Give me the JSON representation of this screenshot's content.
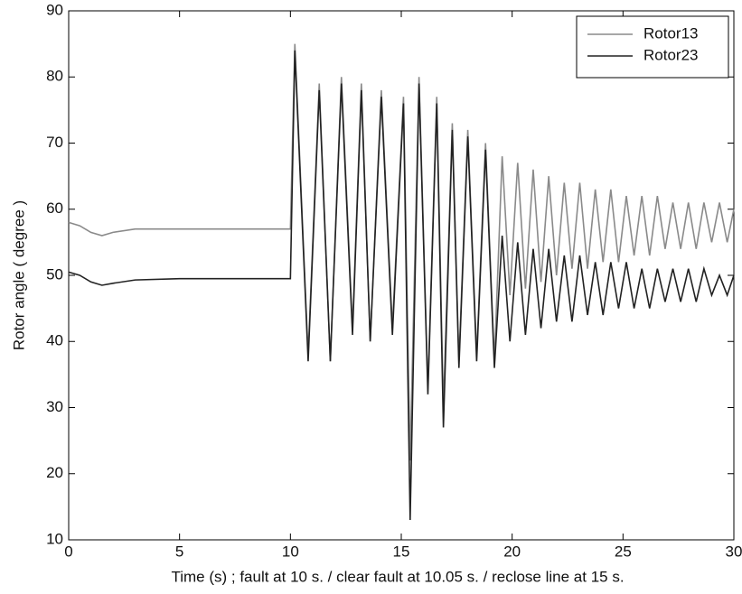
{
  "chart_data": {
    "type": "line",
    "xlabel": "Time (s) ; fault at 10 s. / clear fault at 10.05 s. / reclose line at 15 s.",
    "ylabel": "Rotor angle ( degree )",
    "x": [
      0,
      0.5,
      1,
      1.5,
      2,
      3,
      5,
      8,
      10,
      10.2,
      10.8,
      11.3,
      11.8,
      12.3,
      12.8,
      13.2,
      13.6,
      14.1,
      14.6,
      15.1,
      15.4,
      15.8,
      16.2,
      16.6,
      16.9,
      17.3,
      17.6,
      18.0,
      18.4,
      18.8,
      19.2,
      19.55,
      19.9,
      20.25,
      20.6,
      20.95,
      21.3,
      21.65,
      22.0,
      22.35,
      22.7,
      23.05,
      23.4,
      23.75,
      24.1,
      24.45,
      24.8,
      25.15,
      25.5,
      25.85,
      26.2,
      26.55,
      26.9,
      27.25,
      27.6,
      27.95,
      28.3,
      28.65,
      29.0,
      29.35,
      29.7,
      30
    ],
    "series": [
      {
        "name": "Rotor13",
        "color": "#8a8a8a",
        "values": [
          58,
          57.5,
          56.5,
          56,
          56.5,
          57,
          57,
          57,
          57,
          85,
          38,
          79,
          37,
          80,
          42,
          79,
          40,
          78,
          42,
          77,
          22,
          80,
          33,
          77,
          30,
          73,
          37,
          72,
          38,
          70,
          37,
          68,
          47,
          67,
          48,
          66,
          49,
          65,
          50,
          64,
          51,
          64,
          51,
          63,
          52,
          63,
          52,
          62,
          53,
          62,
          53,
          62,
          54,
          61,
          54,
          61,
          54,
          61,
          55,
          61,
          55,
          60
        ]
      },
      {
        "name": "Rotor23",
        "color": "#222222",
        "values": [
          50.5,
          50,
          49,
          48.5,
          48.8,
          49.3,
          49.5,
          49.5,
          49.5,
          84,
          37,
          78,
          37,
          79,
          41,
          78,
          40,
          77,
          41,
          76,
          13,
          79,
          32,
          76,
          27,
          72,
          36,
          71,
          37,
          69,
          36,
          56,
          40,
          55,
          41,
          54,
          42,
          54,
          43,
          53,
          43,
          53,
          44,
          52,
          44,
          52,
          45,
          52,
          45,
          51,
          45,
          51,
          46,
          51,
          46,
          51,
          46,
          51,
          47,
          50,
          47,
          50
        ]
      }
    ],
    "xlim": [
      0,
      30
    ],
    "xticks": [
      0,
      5,
      10,
      15,
      20,
      25,
      30
    ],
    "ylim": [
      10,
      90
    ],
    "yticks": [
      10,
      20,
      30,
      40,
      50,
      60,
      70,
      80,
      90
    ],
    "grid": false,
    "legend": "top-right"
  }
}
